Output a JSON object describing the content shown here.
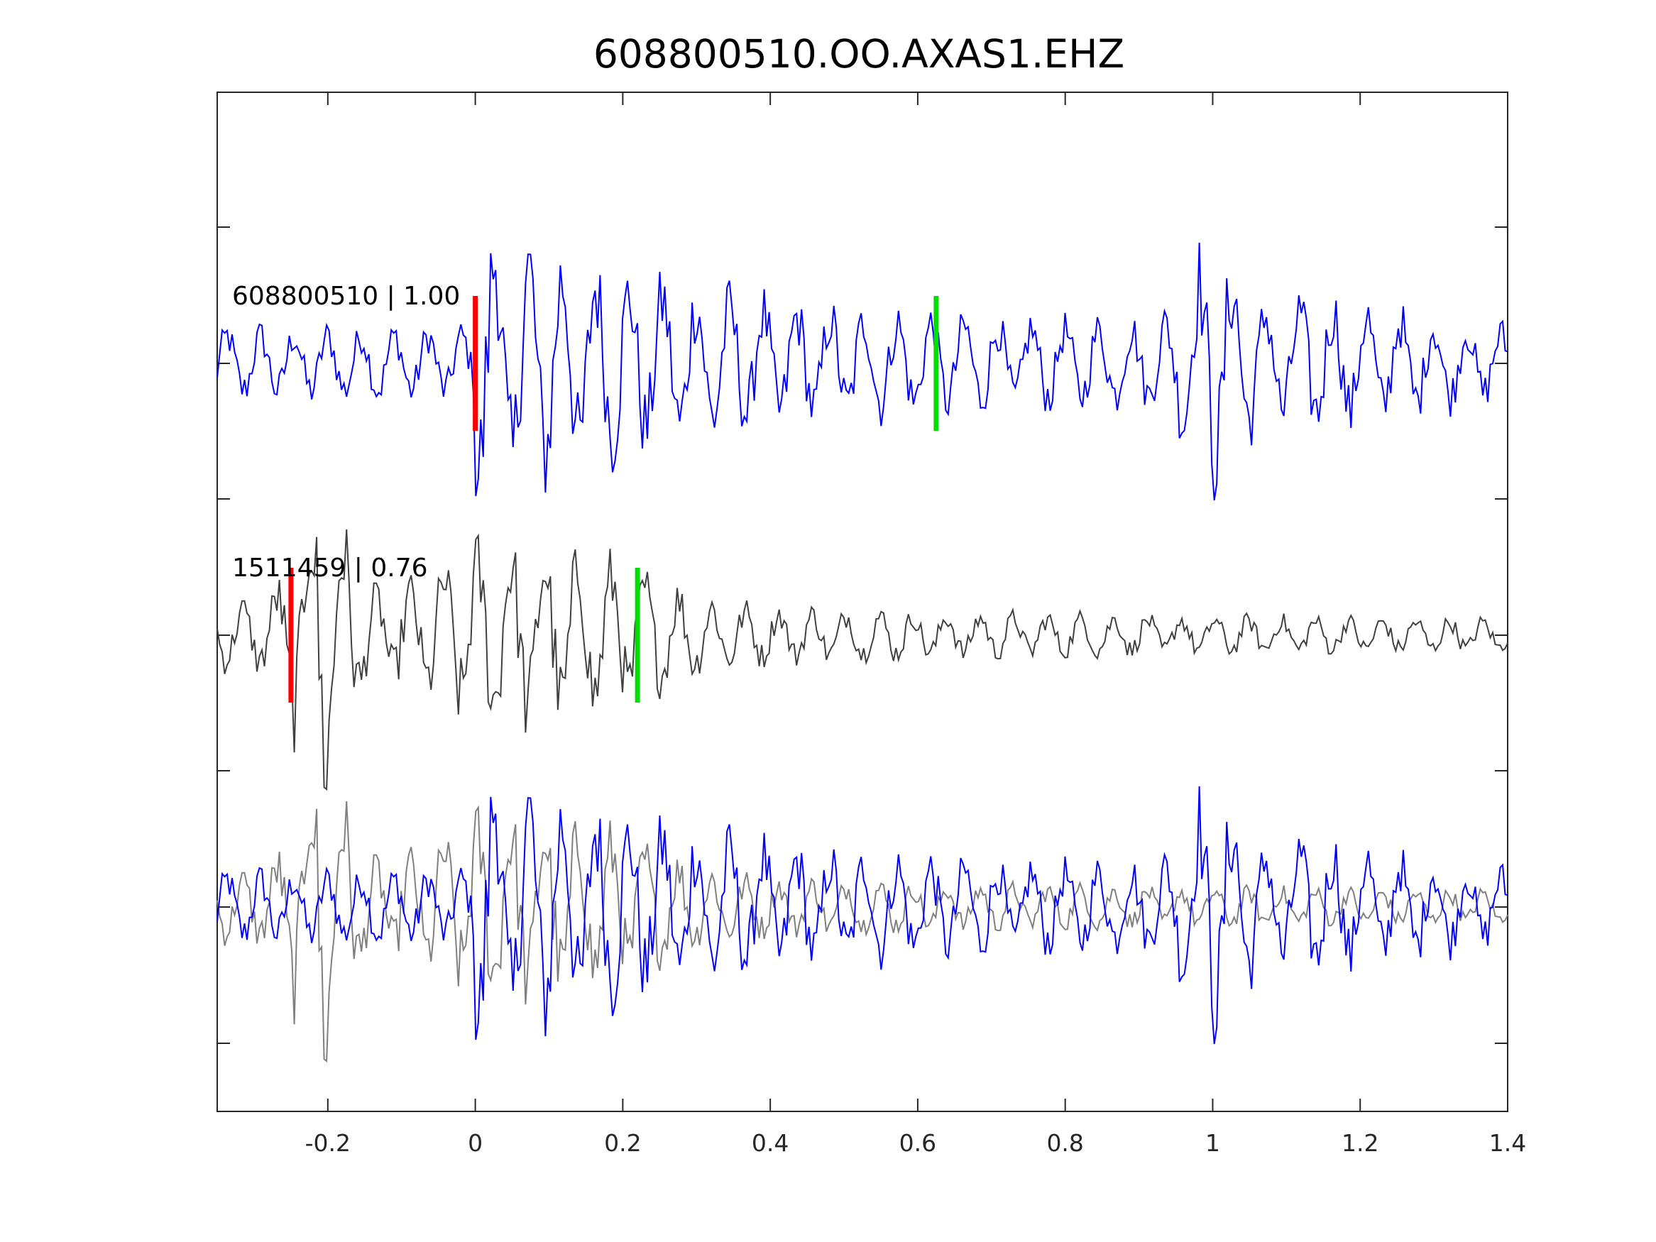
{
  "chart_data": {
    "type": "line",
    "title": "608800510.OO.AXAS1.EHZ",
    "xlabel": "",
    "ylabel": "",
    "xlim": [
      -0.35,
      1.4
    ],
    "x_ticks": [
      -0.2,
      0,
      0.2,
      0.4,
      0.6,
      0.8,
      1,
      1.2,
      1.4
    ],
    "x_tick_labels": [
      "-0.2",
      "0",
      "0.2",
      "0.4",
      "0.6",
      "0.8",
      "1",
      "1.2",
      "1.4"
    ],
    "grid": false,
    "colors": {
      "template": "#0000ff",
      "detected": "#404040",
      "overlay_detected": "#808080",
      "p_marker": "#ff0000",
      "s_marker": "#00dd00"
    },
    "traces": [
      {
        "label": "608800510 | 1.00",
        "id": "608800510",
        "cc": "1.00",
        "color": "#0000ff",
        "p_pick": 0.0,
        "s_pick": 0.625
      },
      {
        "label": "1511459 | 0.76",
        "id": "1511459",
        "cc": "0.76",
        "color": "#404040",
        "p_pick": -0.25,
        "s_pick": 0.22
      }
    ],
    "overlay": {
      "description_series": [
        "608800510",
        "1511459"
      ]
    }
  }
}
